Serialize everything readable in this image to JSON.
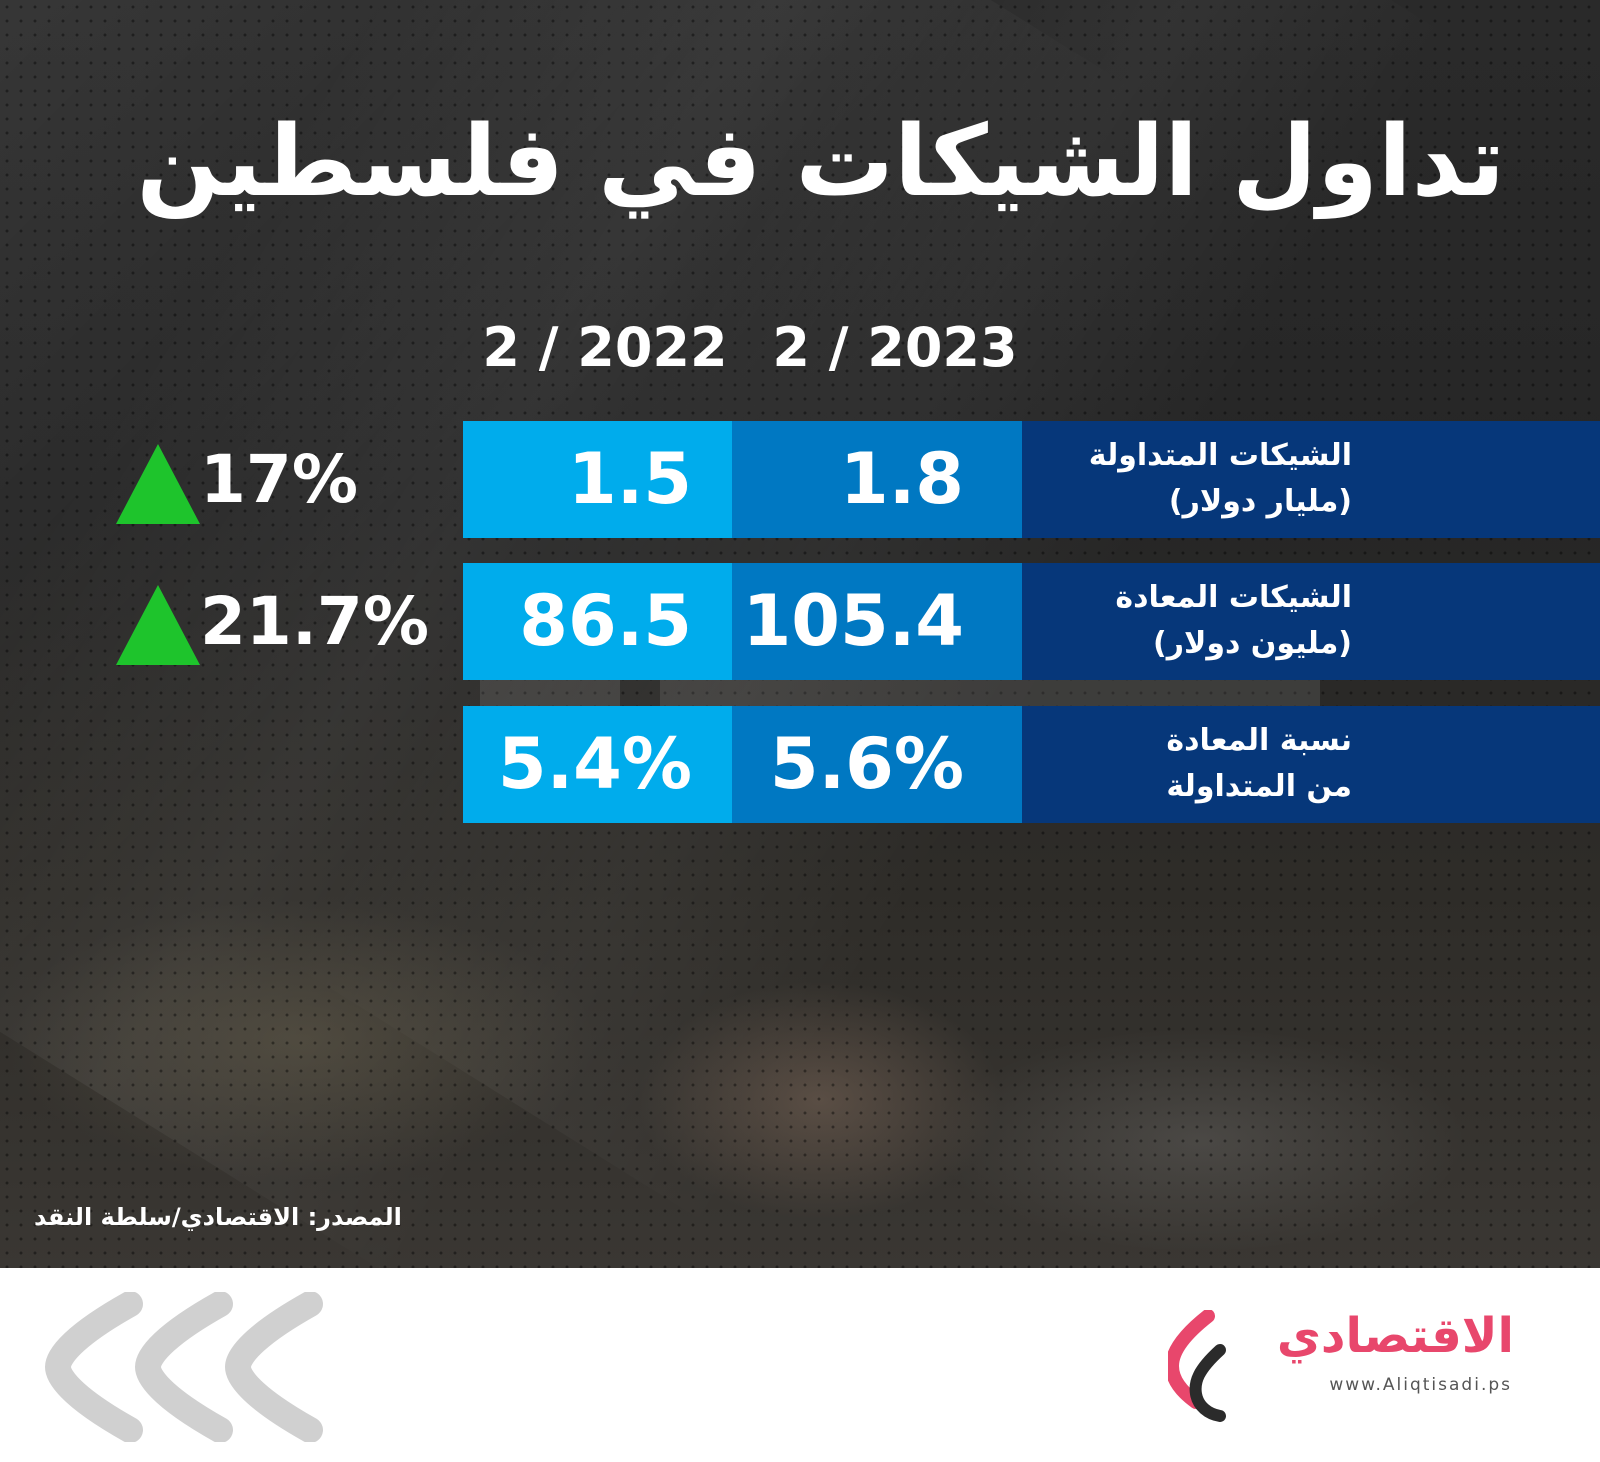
{
  "title": "تداول الشيكات في فلسطين",
  "chart_data": {
    "type": "table",
    "title": "تداول الشيكات في فلسطين",
    "columns": [
      "2 / 2023",
      "2 / 2022"
    ],
    "rows": [
      {
        "label": "الشيكات المتداولة",
        "unit": "(مليار دولار)",
        "value_2023": "1.8",
        "value_2022": "1.5",
        "change": "17%",
        "trend": "up"
      },
      {
        "label": "الشيكات المعادة",
        "unit": "(مليون دولار)",
        "value_2023": "105.4",
        "value_2022": "86.5",
        "change": "21.7%",
        "trend": "up"
      },
      {
        "label": "نسبة المعادة",
        "unit": "من المتداولة",
        "value_2023": "5.6%",
        "value_2022": "5.4%",
        "change": "",
        "trend": ""
      }
    ],
    "source": "المصدر: الاقتصادي/سلطة النقد"
  },
  "brand": {
    "name": "الاقتصادي",
    "url": "www.Aliqtisadi.ps"
  },
  "colors": {
    "col_2022": "#00acec",
    "col_2023": "#0078c2",
    "label_bg": "#06377a",
    "up_arrow": "#1ec42c",
    "brand_pink": "#e8476c"
  },
  "icons": {
    "trend_up": "green-up-triangle-icon",
    "brand_logo": "aliqtisadi-logo-icon",
    "decor": "chevron-left-icon"
  }
}
